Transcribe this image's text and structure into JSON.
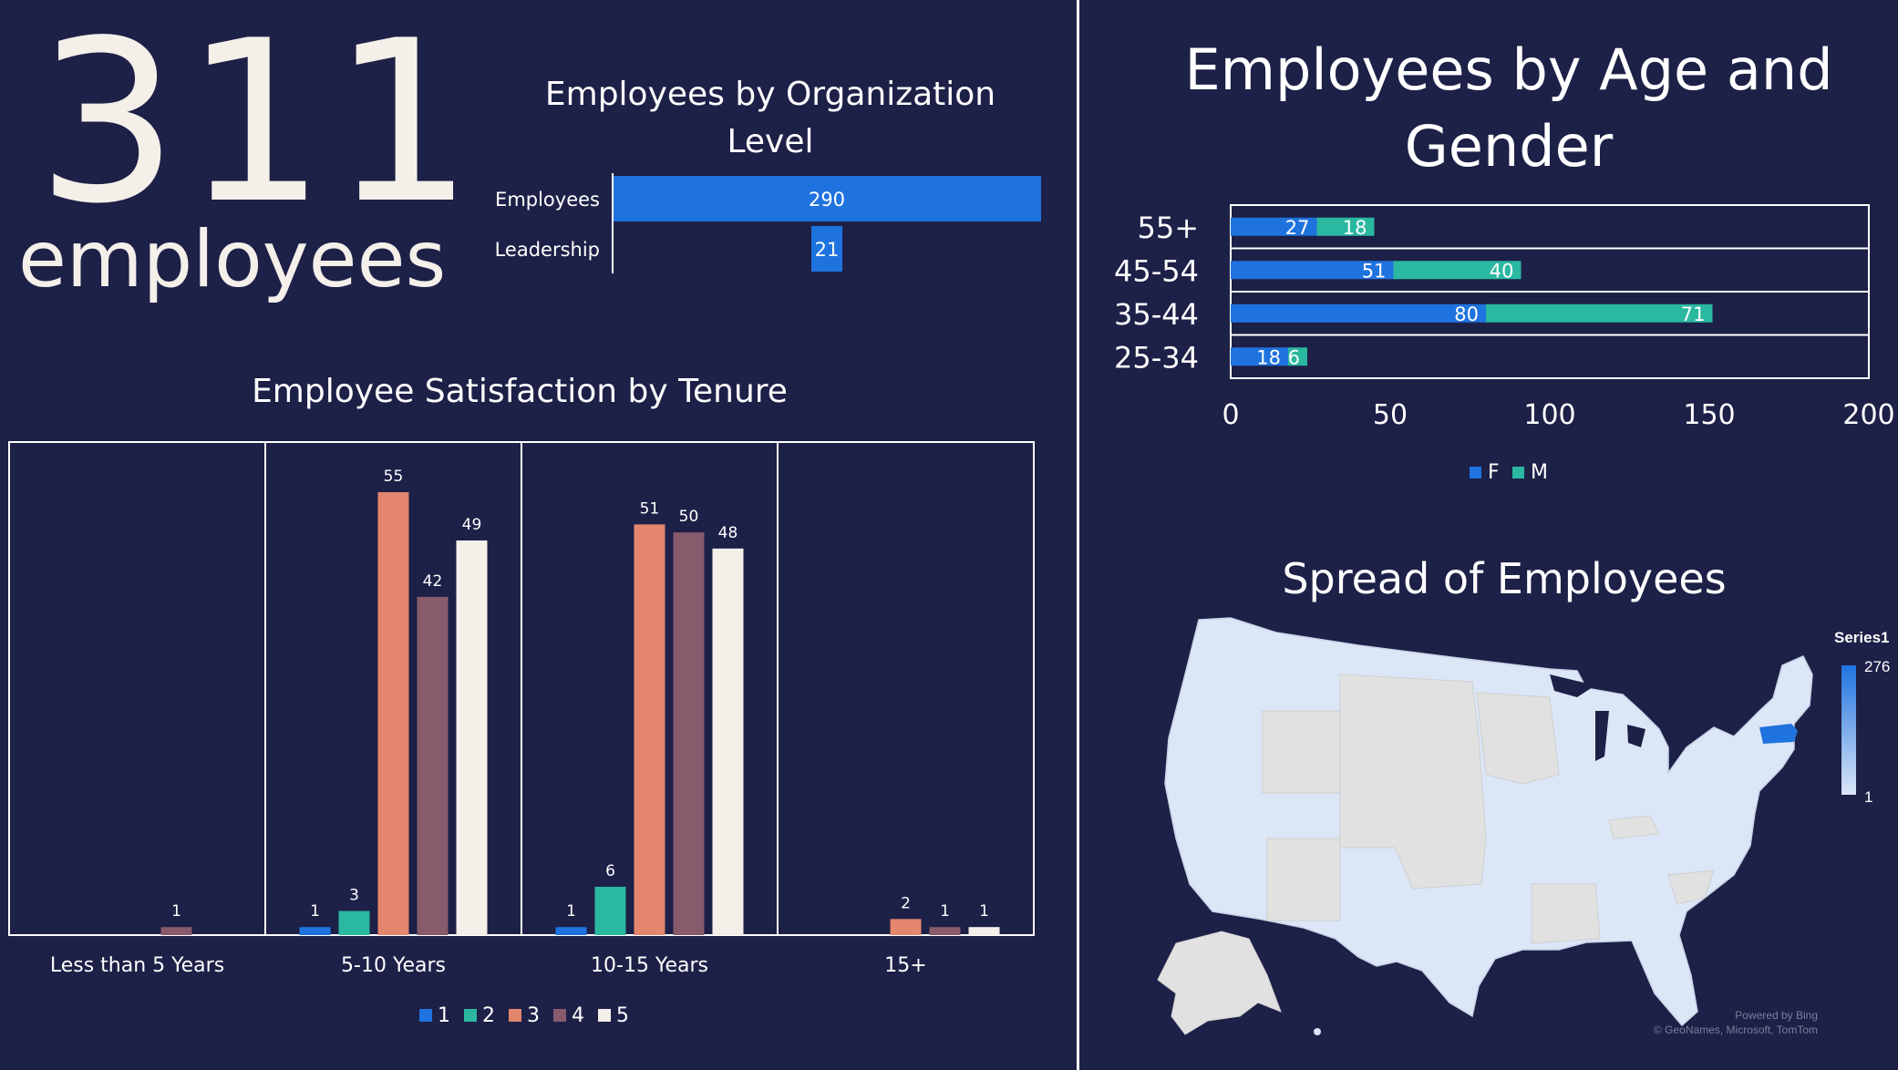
{
  "kpi": {
    "number": "311",
    "label": "employees"
  },
  "chart_data": [
    {
      "type": "bar",
      "orientation": "horizontal",
      "title": "Employees by Organization Level",
      "categories": [
        "Employees",
        "Leadership"
      ],
      "values": [
        290,
        21
      ],
      "color": "#1f73df"
    },
    {
      "type": "bar",
      "orientation": "horizontal",
      "stacked": true,
      "title": "Employees by Age and Gender",
      "categories": [
        "55+",
        "45-54",
        "35-44",
        "25-34"
      ],
      "series": [
        {
          "name": "F",
          "values": [
            27,
            51,
            80,
            18
          ],
          "color": "#1f73df"
        },
        {
          "name": "M",
          "values": [
            18,
            40,
            71,
            6
          ],
          "color": "#2bb8a0"
        }
      ],
      "xlim": [
        0,
        200
      ],
      "xticks": [
        "0",
        "50",
        "100",
        "150",
        "200"
      ],
      "legend": "bottom"
    },
    {
      "type": "bar",
      "title": "Employee Satisfaction by Tenure",
      "categories": [
        "Less than 5 Years",
        "5-10 Years",
        "10-15 Years",
        "15+"
      ],
      "series": [
        {
          "name": "1",
          "values": [
            null,
            1,
            1,
            null
          ],
          "color": "#1f73df"
        },
        {
          "name": "2",
          "values": [
            null,
            3,
            6,
            null
          ],
          "color": "#2bb8a0"
        },
        {
          "name": "3",
          "values": [
            null,
            55,
            51,
            2
          ],
          "color": "#e3866d"
        },
        {
          "name": "4",
          "values": [
            1,
            42,
            50,
            1
          ],
          "color": "#875a6c"
        },
        {
          "name": "5",
          "values": [
            null,
            49,
            48,
            1
          ],
          "color": "#f4efe9"
        }
      ],
      "ylim": [
        0,
        60
      ],
      "legend": "bottom"
    }
  ],
  "map": {
    "title": "Spread of Employees",
    "legend_title": "Series1",
    "legend_max": "276",
    "legend_min": "1",
    "credit_line1": "Powered by Bing",
    "credit_line2": "© GeoNames, Microsoft, TomTom",
    "colors": {
      "high": "#1f73df",
      "low": "#dbe6f7",
      "nodata": "#e1e1e1"
    }
  },
  "colors": {
    "background": "#1d2047",
    "axis": "#ffffff"
  }
}
